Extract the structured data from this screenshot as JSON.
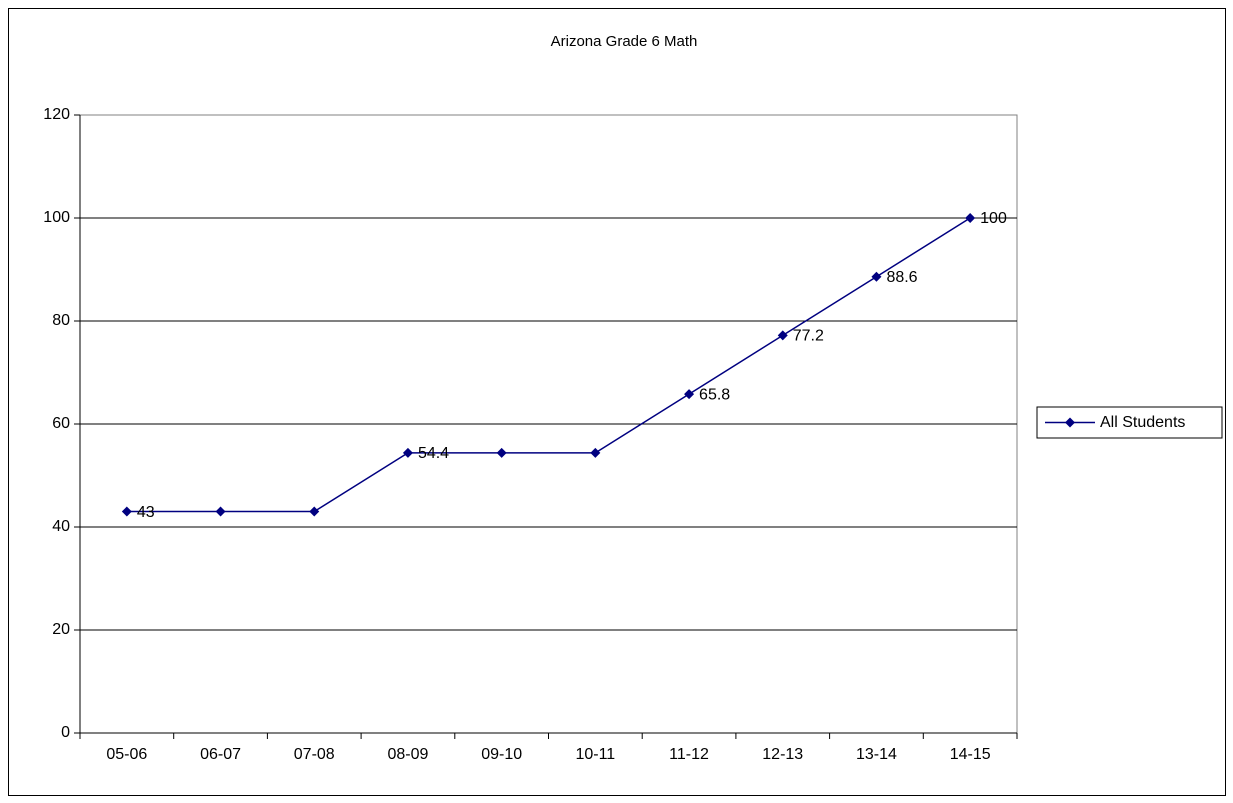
{
  "chart_data": {
    "type": "line",
    "title": "Arizona Grade 6 Math",
    "categories": [
      "05-06",
      "06-07",
      "07-08",
      "08-09",
      "09-10",
      "10-11",
      "11-12",
      "12-13",
      "13-14",
      "14-15"
    ],
    "series": [
      {
        "name": "All Students",
        "color": "#000080",
        "values": [
          43,
          43,
          43,
          54.4,
          54.4,
          54.4,
          65.8,
          77.2,
          88.6,
          100
        ],
        "value_labels": [
          "43",
          null,
          null,
          "54.4",
          null,
          null,
          "65.8",
          "77.2",
          "88.6",
          "100"
        ]
      }
    ],
    "ylim": [
      0,
      120
    ],
    "yticks": [
      0,
      20,
      40,
      60,
      80,
      100,
      120
    ],
    "grid": true,
    "legend": "right"
  }
}
